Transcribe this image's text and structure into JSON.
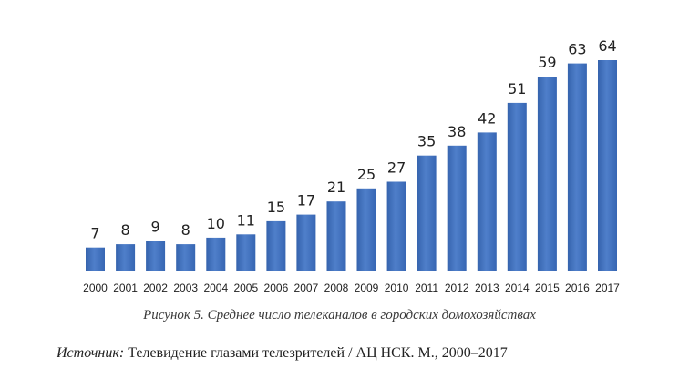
{
  "chart_data": {
    "type": "bar",
    "categories": [
      "2000",
      "2001",
      "2002",
      "2003",
      "2004",
      "2005",
      "2006",
      "2007",
      "2008",
      "2009",
      "2010",
      "2011",
      "2012",
      "2013",
      "2014",
      "2015",
      "2016",
      "2017"
    ],
    "values": [
      7,
      8,
      9,
      8,
      10,
      11,
      15,
      17,
      21,
      25,
      27,
      35,
      38,
      42,
      51,
      59,
      63,
      64
    ],
    "title": "",
    "xlabel": "",
    "ylabel": "",
    "ylim": [
      0,
      64
    ],
    "grid": false,
    "data_labels": true,
    "bar_color": "#4472c4"
  },
  "caption": "Рисунок 5. Среднее число телеканалов в городских домохозяйствах",
  "source": {
    "label": "Источник:",
    "text": " Телевидение глазами телезрителей / АЦ НСК. М., 2000–2017"
  }
}
